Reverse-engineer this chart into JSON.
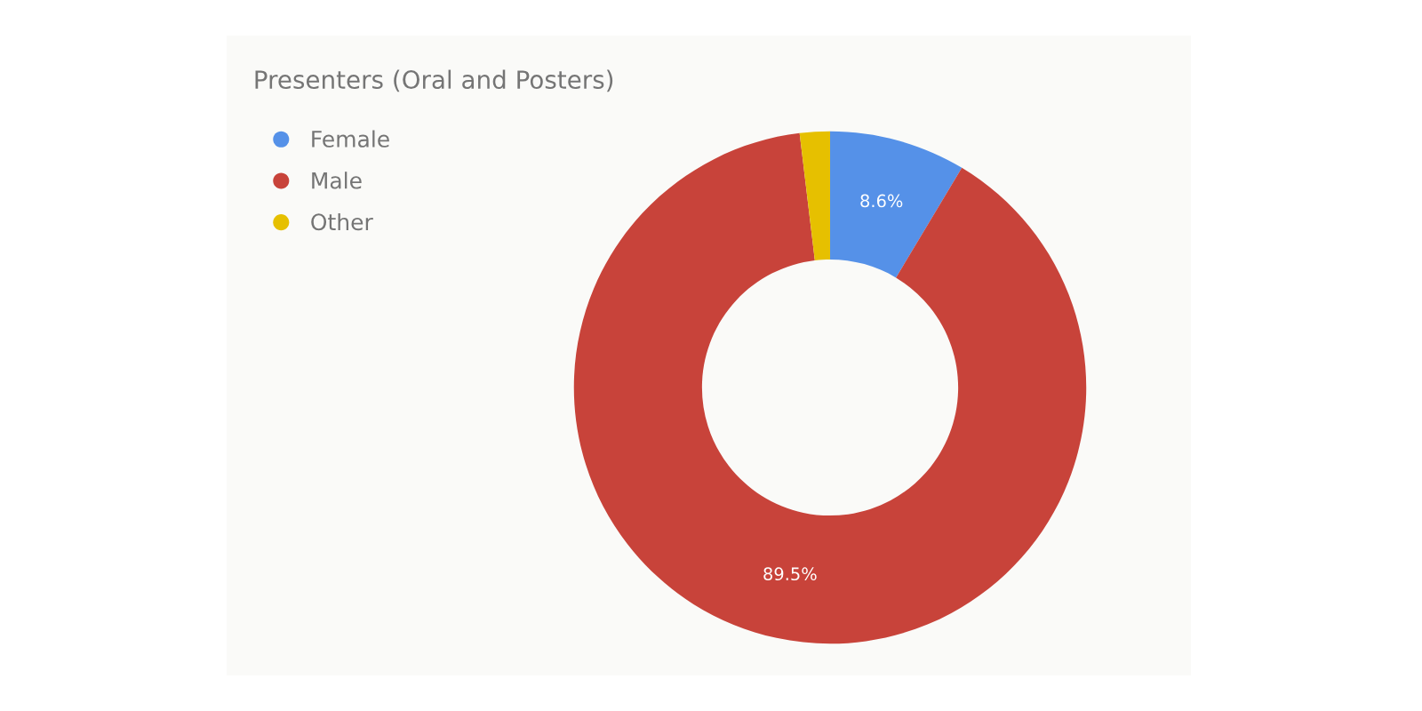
{
  "chart_data": {
    "type": "donut",
    "title": "Presenters (Oral and Posters)",
    "categories": [
      "Female",
      "Male",
      "Other"
    ],
    "values": [
      8.6,
      89.5,
      1.9
    ],
    "colors": [
      "#5591e8",
      "#c8433a",
      "#e6c000"
    ],
    "value_labels": [
      "8.6%",
      "89.5%",
      null
    ],
    "legend": "top left"
  }
}
